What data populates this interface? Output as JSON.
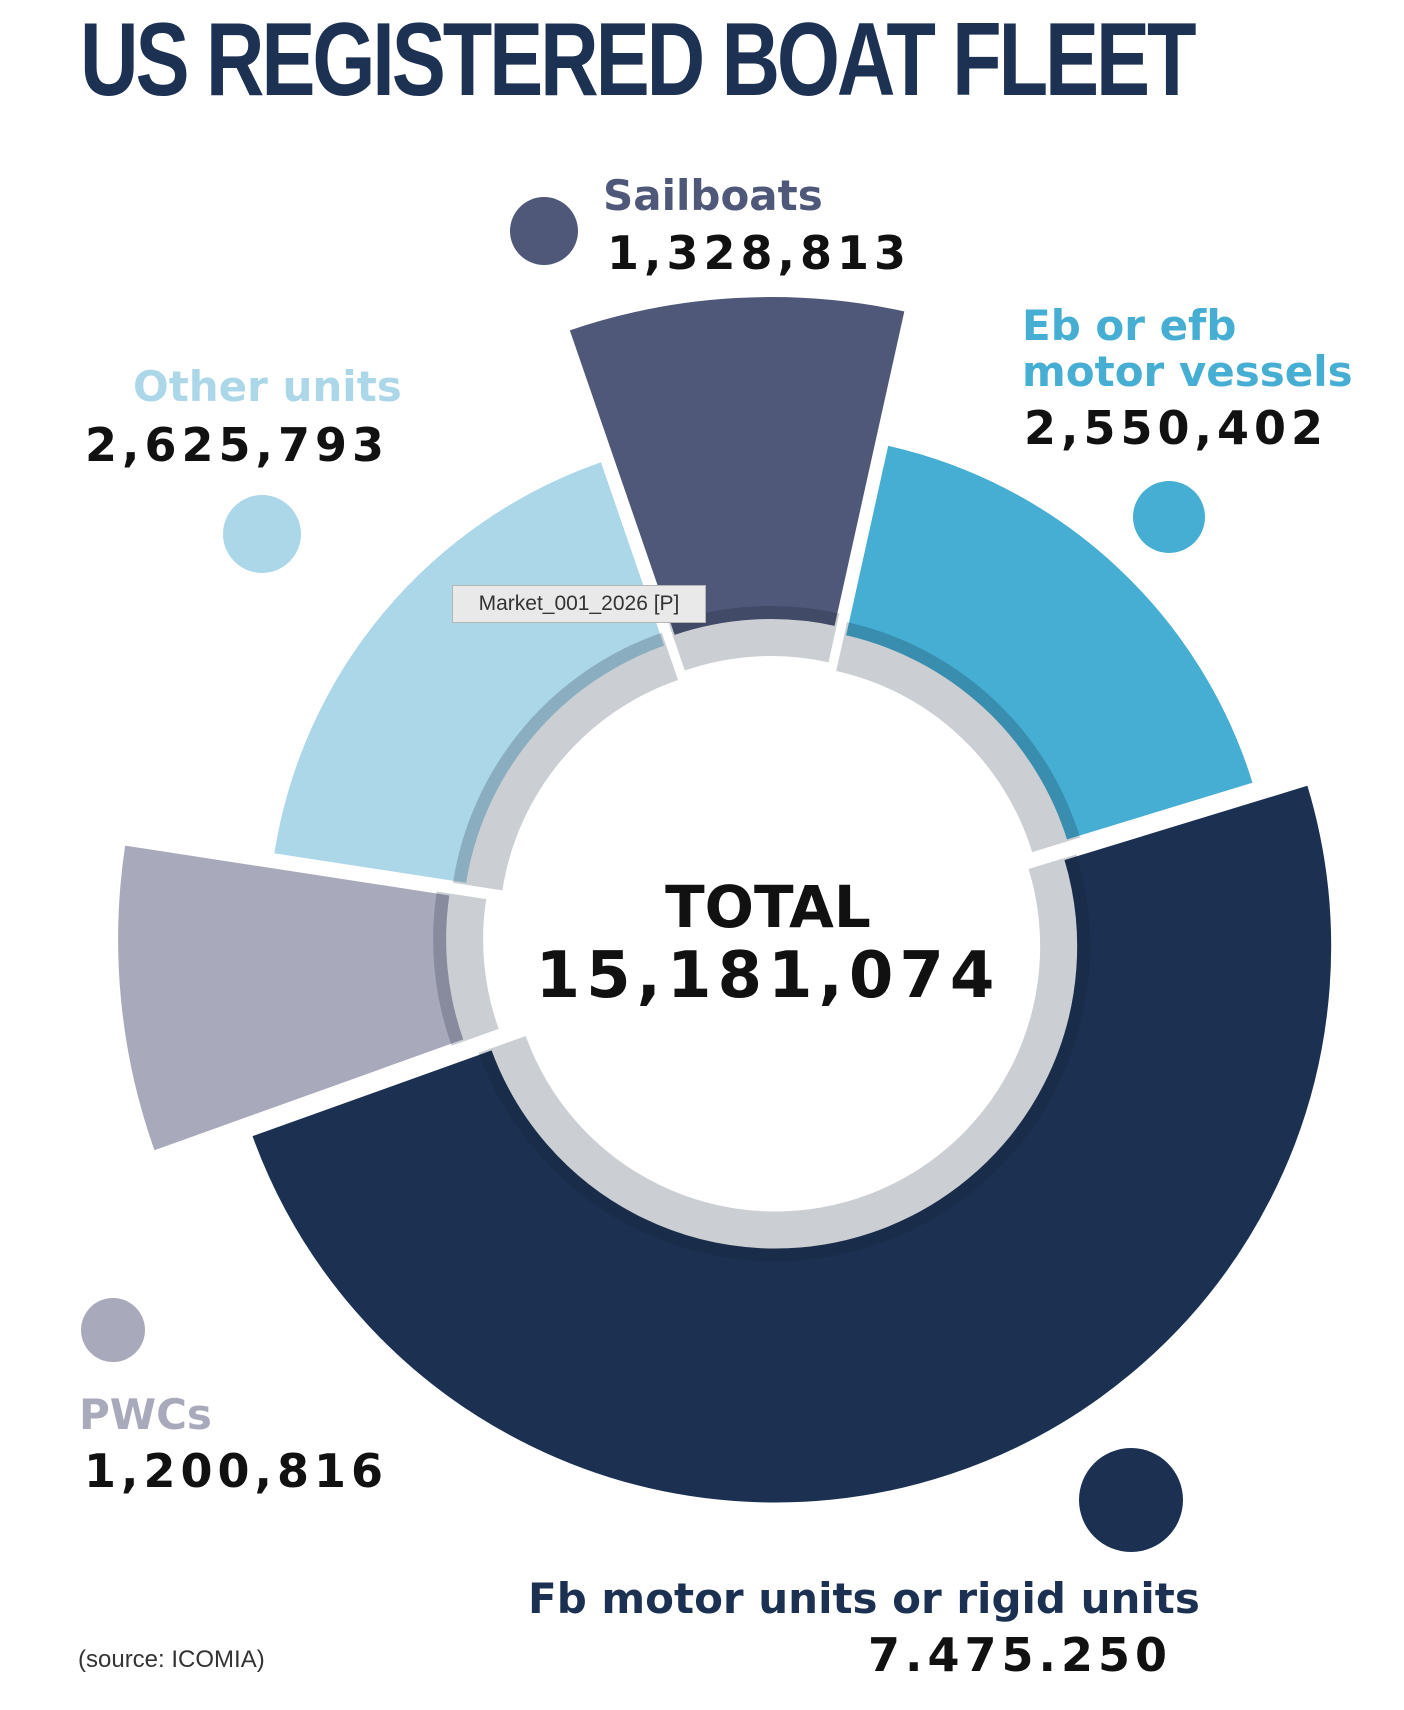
{
  "chart_data": {
    "type": "pie",
    "title": "US REGISTERED BOAT FLEET",
    "total_label": "TOTAL",
    "total_value": "15,181,074",
    "source": "(source: ICOMIA)",
    "slices": [
      {
        "label": "Sailboats",
        "display_value": "1,328,813",
        "value": 1328813,
        "color": "#4f5878"
      },
      {
        "label": "Eb or efb\nmotor vessels",
        "display_value": "2,550,402",
        "value": 2550402,
        "color": "#45aed2"
      },
      {
        "label": "Fb motor units or rigid units",
        "display_value": "7.475.250",
        "value": 7475250,
        "color": "#1c3152"
      },
      {
        "label": "PWCs",
        "display_value": "1,200,816",
        "value": 1200816,
        "color": "#a9a9bc"
      },
      {
        "label": "Other units",
        "display_value": "2,625,793",
        "value": 2625793,
        "color": "#acd7e8"
      }
    ],
    "label_colors": {
      "Sailboats": "#4f5878",
      "Eb or efb motor vessels": "#45aed2",
      "Fb motor units or rigid units": "#1c3152",
      "PWCs": "#a9a9bc",
      "Other units": "#acd7e8"
    }
  },
  "overlay": {
    "tag": "Market_001_2026 [P]"
  }
}
